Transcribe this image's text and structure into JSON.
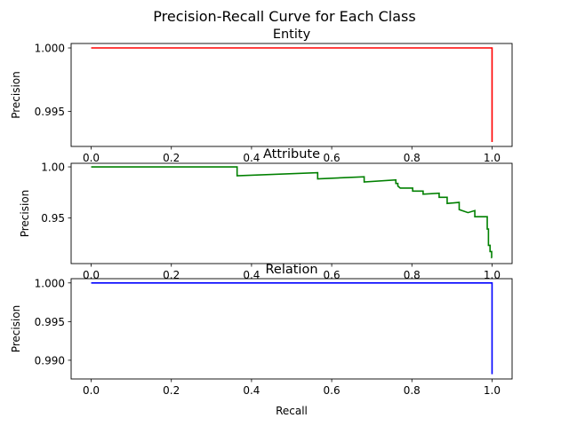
{
  "figure": {
    "suptitle": "Precision-Recall Curve for Each Class"
  },
  "chart_data": [
    {
      "type": "line",
      "title": "Entity",
      "xlabel": "",
      "ylabel": "Precision",
      "xlim": [
        -0.05,
        1.05
      ],
      "ylim": [
        0.99225,
        1.00035
      ],
      "xticks": [
        0.0,
        0.2,
        0.4,
        0.6,
        0.8,
        1.0
      ],
      "xtick_labels": [
        "0.0",
        "0.2",
        "0.4",
        "0.6",
        "0.8",
        "1.0"
      ],
      "yticks": [
        1.0,
        0.995
      ],
      "ytick_labels": [
        "1.000",
        "0.995"
      ],
      "series": [
        {
          "color": "#ff0000",
          "x": [
            0.0,
            1.0,
            1.0
          ],
          "y": [
            1.0,
            1.0,
            0.9926
          ]
        }
      ]
    },
    {
      "type": "line",
      "title": "Attribute",
      "xlabel": "",
      "ylabel": "Precision",
      "xlim": [
        -0.05,
        1.05
      ],
      "ylim": [
        0.9055,
        1.0035
      ],
      "xticks": [
        0.0,
        0.2,
        0.4,
        0.6,
        0.8,
        1.0
      ],
      "xtick_labels": [
        "0.0",
        "0.2",
        "0.4",
        "0.6",
        "0.8",
        "1.0"
      ],
      "yticks": [
        1.0,
        0.95
      ],
      "ytick_labels": [
        "1.00",
        "0.95"
      ],
      "series": [
        {
          "color": "#008000",
          "x": [
            0.0,
            0.364,
            0.364,
            0.565,
            0.565,
            0.681,
            0.681,
            0.76,
            0.76,
            0.765,
            0.765,
            0.771,
            0.771,
            0.802,
            0.802,
            0.828,
            0.828,
            0.868,
            0.868,
            0.888,
            0.888,
            0.918,
            0.918,
            0.94,
            0.94,
            0.957,
            0.957,
            0.973,
            0.973,
            0.988,
            0.988,
            0.991,
            0.991,
            0.995,
            0.995,
            0.999,
            0.999,
            1.0
          ],
          "y": [
            1.0,
            1.0,
            0.9913,
            0.9943,
            0.9883,
            0.9903,
            0.9853,
            0.9873,
            0.9838,
            0.9838,
            0.9813,
            0.9793,
            0.9793,
            0.9793,
            0.9763,
            0.9763,
            0.9733,
            0.9743,
            0.9703,
            0.9703,
            0.9643,
            0.9653,
            0.9583,
            0.9553,
            0.9553,
            0.9573,
            0.9513,
            0.9513,
            0.9513,
            0.9513,
            0.9393,
            0.9393,
            0.9233,
            0.9233,
            0.9173,
            0.9173,
            0.9113,
            0.9113
          ]
        }
      ]
    },
    {
      "type": "line",
      "title": "Relation",
      "xlabel": "Recall",
      "ylabel": "Precision",
      "xlim": [
        -0.05,
        1.05
      ],
      "ylim": [
        0.98758,
        1.00055
      ],
      "xticks": [
        0.0,
        0.2,
        0.4,
        0.6,
        0.8,
        1.0
      ],
      "xtick_labels": [
        "0.0",
        "0.2",
        "0.4",
        "0.6",
        "0.8",
        "1.0"
      ],
      "yticks": [
        1.0,
        0.995,
        0.99
      ],
      "ytick_labels": [
        "1.000",
        "0.995",
        "0.990"
      ],
      "series": [
        {
          "color": "#0000ff",
          "x": [
            0.0,
            1.0,
            1.0
          ],
          "y": [
            1.0,
            1.0,
            0.9882
          ]
        }
      ]
    }
  ]
}
